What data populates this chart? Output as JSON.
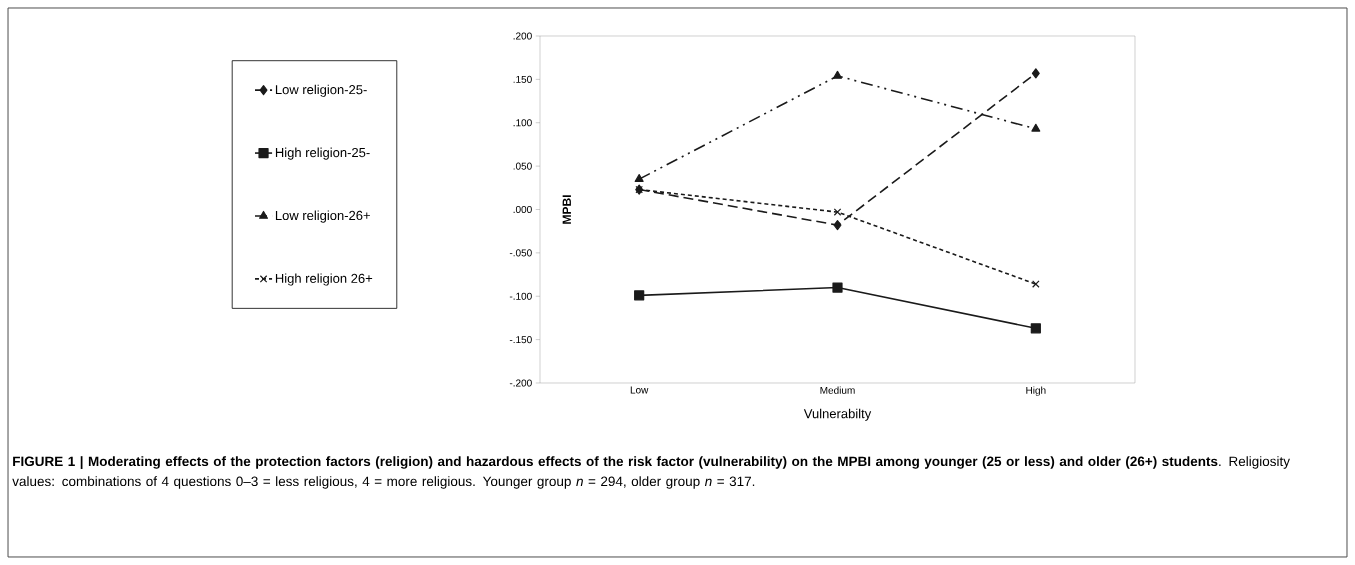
{
  "chart_data": {
    "type": "line",
    "categories": [
      "Low",
      "Medium",
      "High"
    ],
    "series": [
      {
        "name": "Low religion-25-",
        "color": "#1a1a1a",
        "values": [
          0.023,
          -0.018,
          0.157
        ],
        "marker": "diamond",
        "line_style": "dashed"
      },
      {
        "name": "High religion-25-",
        "color": "#1a1a1a",
        "values": [
          -0.099,
          -0.09,
          -0.137
        ],
        "marker": "square",
        "line_style": "solid"
      },
      {
        "name": "Low religion-26+",
        "color": "#1a1a1a",
        "values": [
          0.035,
          0.154,
          0.093
        ],
        "marker": "triangle",
        "line_style": "dashdot"
      },
      {
        "name": "High religion 26+",
        "color": "#1a1a1a",
        "values": [
          0.023,
          -0.003,
          -0.086
        ],
        "marker": "cross",
        "line_style": "dotted"
      }
    ],
    "xlabel": "Vulnerabilty",
    "ylabel": "MPBI",
    "ylim": [
      -0.2,
      0.2
    ],
    "yticks": [
      {
        "value": -0.2,
        "label": "-.200"
      },
      {
        "value": -0.15,
        "label": "-.150"
      },
      {
        "value": -0.1,
        "label": "-.100"
      },
      {
        "value": -0.05,
        "label": "-.050"
      },
      {
        "value": 0,
        "label": ".000"
      },
      {
        "value": 0.05,
        "label": ".050"
      },
      {
        "value": 0.1,
        "label": ".100"
      },
      {
        "value": 0.15,
        "label": ".150"
      },
      {
        "value": 0.2,
        "label": ".200"
      }
    ],
    "legend": "left",
    "grid": false,
    "annotations": [
      "**FIGURE 1 | Moderating effects of the protection factors (religion) and hazardous effects of the risk factor (vulnerability) on the MPBI among younger (25 or less) and older (26+) students**. Religiosity values: combinations of 4 questions 0–3 = less religious, 4 = more religious. Younger group *n* = 294, older group *n* = 317."
    ]
  }
}
